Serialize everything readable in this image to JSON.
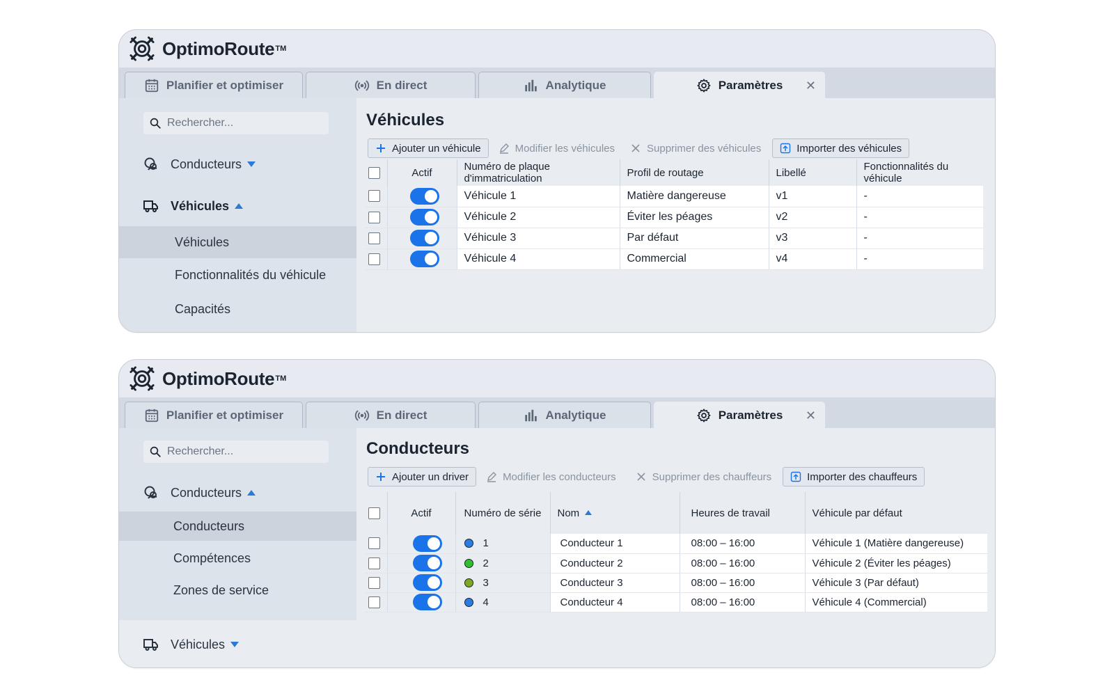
{
  "app": {
    "name": "OptimoRoute",
    "tm": "TM"
  },
  "tabs": [
    {
      "label": "Planifier et optimiser",
      "icon": "calendar-icon"
    },
    {
      "label": "En direct",
      "icon": "broadcast-icon"
    },
    {
      "label": "Analytique",
      "icon": "bar-chart-icon"
    },
    {
      "label": "Paramètres",
      "icon": "gear-icon",
      "active": true
    }
  ],
  "search_placeholder": "Rechercher...",
  "window1": {
    "sidebar": {
      "group_drivers": "Conducteurs",
      "group_vehicles": "Véhicules",
      "items": [
        "Véhicules",
        "Fonctionnalités du véhicule",
        "Capacités"
      ]
    },
    "title": "Véhicules",
    "toolbar": {
      "add": "Ajouter un véhicule",
      "edit": "Modifier les véhicules",
      "delete": "Supprimer des véhicules",
      "import": "Importer des véhicules"
    },
    "columns": [
      "Actif",
      "Numéro de plaque d'immatriculation",
      "Profil de routage",
      "Libellé",
      "Fonctionnalités du véhicule"
    ],
    "rows": [
      {
        "active": true,
        "plate": "Véhicule 1",
        "profile": "Matière dangereuse",
        "label": "v1",
        "features": "-"
      },
      {
        "active": true,
        "plate": "Véhicule 2",
        "profile": "Éviter les péages",
        "label": "v2",
        "features": "-"
      },
      {
        "active": true,
        "plate": "Véhicule 3",
        "profile": "Par défaut",
        "label": "v3",
        "features": "-"
      },
      {
        "active": true,
        "plate": "Véhicule 4",
        "profile": "Commercial",
        "label": "v4",
        "features": "-"
      }
    ]
  },
  "window2": {
    "sidebar": {
      "group_drivers": "Conducteurs",
      "group_vehicles": "Véhicules",
      "items": [
        "Conducteurs",
        "Compétences",
        "Zones de service"
      ]
    },
    "title": "Conducteurs",
    "toolbar": {
      "add": "Ajouter un driver",
      "edit": "Modifier les conducteurs",
      "delete": "Supprimer des chauffeurs",
      "import": "Importer des chauffeurs"
    },
    "columns": [
      "Actif",
      "Numéro de série",
      "Nom",
      "Heures de travail",
      "Véhicule par défaut"
    ],
    "rows": [
      {
        "active": true,
        "serial": "1",
        "color": "#2c7be5",
        "name": "Conducteur 1",
        "hours": "08:00 – 16:00",
        "vehicle": "Véhicule 1 (Matière dangereuse)"
      },
      {
        "active": true,
        "serial": "2",
        "color": "#2fbf2f",
        "name": "Conducteur 2",
        "hours": "08:00 – 16:00",
        "vehicle": "Véhicule 2 (Éviter les péages)"
      },
      {
        "active": true,
        "serial": "3",
        "color": "#7da81f",
        "name": "Conducteur 3",
        "hours": "08:00 – 16:00",
        "vehicle": "Véhicule 3 (Par défaut)"
      },
      {
        "active": true,
        "serial": "4",
        "color": "#2c7be5",
        "name": "Conducteur 4",
        "hours": "08:00 – 16:00",
        "vehicle": "Véhicule 4 (Commercial)"
      }
    ]
  },
  "colors": {
    "accent": "#1a73e8",
    "caret": "#2d7ad6"
  }
}
